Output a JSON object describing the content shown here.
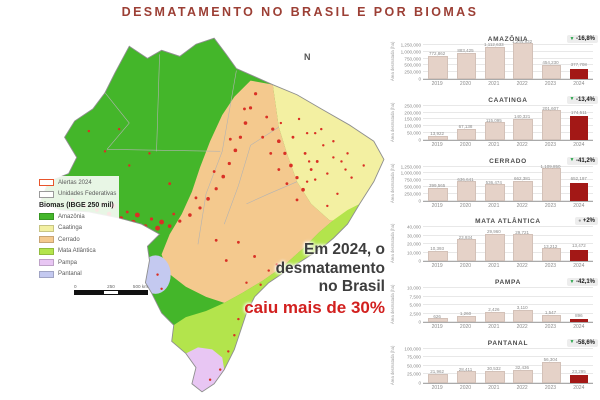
{
  "title": "DESMATAMENTO NO BRASIL E POR BIOMAS",
  "annotation": {
    "line1": "Em 2024, o",
    "line2": "desmatamento",
    "line3": "no Brasil",
    "highlight": "caiu mais de 30%"
  },
  "map": {
    "north_label": "N",
    "scale": {
      "start": "0",
      "mid": "250",
      "end": "500 km"
    }
  },
  "legend": {
    "alerts_label": "Alertas 2024",
    "alerts_color": "#e8552c",
    "states_label": "Unidades Federativas",
    "states_color": "#9a9a9a",
    "biomes_header": "Biomas (IBGE 250 mil)",
    "biomes": [
      {
        "key": "amazonia",
        "name": "Amazônia",
        "color": "#44b62a"
      },
      {
        "key": "caatinga",
        "name": "Caatinga",
        "color": "#f3f0a2"
      },
      {
        "key": "cerrado",
        "name": "Cerrado",
        "color": "#f4c98e"
      },
      {
        "key": "mata-atlantica",
        "name": "Mata Atlântica",
        "color": "#b3e44c"
      },
      {
        "key": "pampa",
        "name": "Pampa",
        "color": "#e8c6f3"
      },
      {
        "key": "pantanal",
        "name": "Pantanal",
        "color": "#c4c9f0"
      }
    ]
  },
  "colors": {
    "title_red": "#9c3f35",
    "highlight_red": "#d2201f",
    "bar_light": "#e5d2c8",
    "bar_dark": "#a31816",
    "decrease_green": "#27a349",
    "neutral_gray": "#9a9a9a",
    "alert_red": "#d93025"
  },
  "chart_data": [
    {
      "type": "bar",
      "title": "AMAZÔNIA",
      "ylabel": "Área desmatada (ha)",
      "categories": [
        "2019",
        "2020",
        "2021",
        "2022",
        "2023",
        "2024"
      ],
      "values": [
        772862,
        883425,
        1112633,
        1244832,
        454230,
        377708
      ],
      "labels": [
        "772,862",
        "883,425",
        "1,112,633",
        "1,244,832",
        "454,230",
        "377,708"
      ],
      "ylim": [
        0,
        1250000
      ],
      "yticks": [
        "0",
        "250,000",
        "500,000",
        "750,000",
        "1,000,000",
        "1,250,000"
      ],
      "change": "-16,8%",
      "change_direction": "down"
    },
    {
      "type": "bar",
      "title": "CAATINGA",
      "ylabel": "Área desmatada (ha)",
      "categories": [
        "2019",
        "2020",
        "2021",
        "2022",
        "2023",
        "2024"
      ],
      "values": [
        13922,
        67138,
        115095,
        140321,
        201607,
        174511
      ],
      "labels": [
        "13,922",
        "67,138",
        "115,095",
        "140,321",
        "201,607",
        "174,511"
      ],
      "ylim": [
        0,
        250000
      ],
      "yticks": [
        "0",
        "50,000",
        "100,000",
        "150,000",
        "200,000",
        "250,000"
      ],
      "change": "-13,4%",
      "change_direction": "down"
    },
    {
      "type": "bar",
      "title": "CERRADO",
      "ylabel": "Área desmatada (ha)",
      "categories": [
        "2019",
        "2020",
        "2021",
        "2022",
        "2023",
        "2024"
      ],
      "values": [
        399565,
        636641,
        536474,
        662381,
        1109850,
        652197
      ],
      "labels": [
        "399,565",
        "636,641",
        "536,474",
        "662,381",
        "1,109,850",
        "652,197"
      ],
      "ylim": [
        0,
        1250000
      ],
      "yticks": [
        "0",
        "250,000",
        "500,000",
        "750,000",
        "1,000,000",
        "1,250,000"
      ],
      "change": "-41,2%",
      "change_direction": "down"
    },
    {
      "type": "bar",
      "title": "MATA ATLÂNTICA",
      "ylabel": "Área desmatada (ha)",
      "categories": [
        "2019",
        "2020",
        "2021",
        "2022",
        "2023",
        "2024"
      ],
      "values": [
        10393,
        23934,
        29960,
        29721,
        13212,
        13472
      ],
      "labels": [
        "10,393",
        "23,934",
        "29,960",
        "29,721",
        "13,212",
        "13,472"
      ],
      "ylim": [
        0,
        40000
      ],
      "yticks": [
        "0",
        "10,000",
        "20,000",
        "30,000",
        "40,000"
      ],
      "change": "+2%",
      "change_direction": "neutral"
    },
    {
      "type": "bar",
      "title": "PAMPA",
      "ylabel": "Área desmatada (ha)",
      "categories": [
        "2019",
        "2020",
        "2021",
        "2022",
        "2023",
        "2024"
      ],
      "values": [
        626,
        1260,
        2426,
        3110,
        1547,
        896
      ],
      "labels": [
        "626",
        "1,260",
        "2,426",
        "3,110",
        "1,547",
        "896"
      ],
      "ylim": [
        0,
        10000
      ],
      "yticks": [
        "0",
        "2,500",
        "5,000",
        "7,500",
        "10,000"
      ],
      "change": "-42,1%",
      "change_direction": "down"
    },
    {
      "type": "bar",
      "title": "PANTANAL",
      "ylabel": "Área desmatada (ha)",
      "categories": [
        "2019",
        "2020",
        "2021",
        "2022",
        "2023",
        "2024"
      ],
      "values": [
        21962,
        28411,
        30532,
        32436,
        56304,
        23295
      ],
      "labels": [
        "21,962",
        "28,411",
        "30,532",
        "32,436",
        "56,304",
        "23,295"
      ],
      "ylim": [
        0,
        100000
      ],
      "yticks": [
        "0",
        "25,000",
        "50,000",
        "75,000",
        "100,000"
      ],
      "change": "-58,6%",
      "change_direction": "down"
    }
  ]
}
